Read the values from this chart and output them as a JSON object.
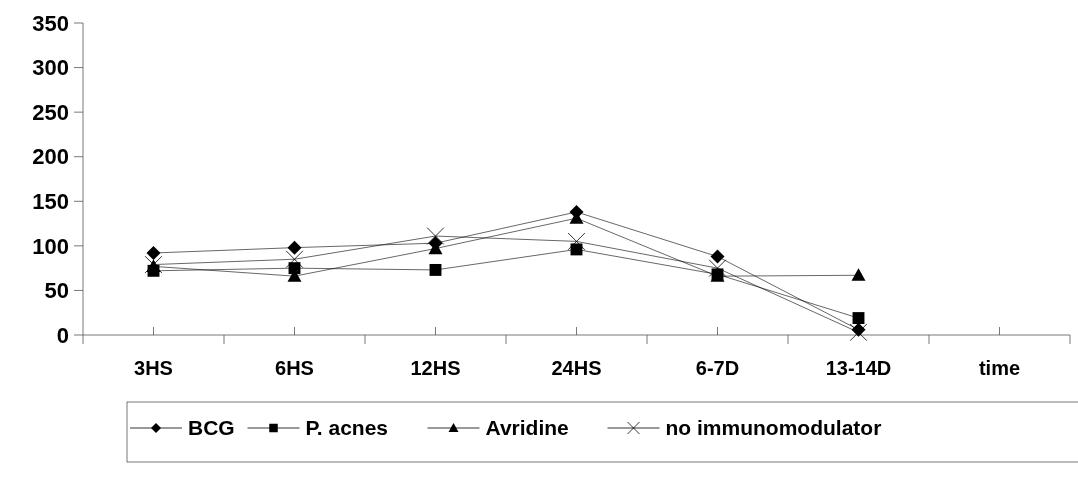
{
  "chart_data": {
    "type": "line",
    "categories": [
      "3HS",
      "6HS",
      "12HS",
      "24HS",
      "6-7D",
      "13-14D",
      "time"
    ],
    "ylim": [
      0,
      350
    ],
    "yticks": [
      0,
      50,
      100,
      150,
      200,
      250,
      300,
      350
    ],
    "grid": false,
    "legend": "bottom",
    "line_style": "solid",
    "series": [
      {
        "name": "BCG",
        "color": "#000000",
        "marker": "diamond",
        "values": [
          92,
          98,
          103,
          138,
          88,
          6,
          null
        ]
      },
      {
        "name": "P. acnes",
        "color": "#000000",
        "marker": "square",
        "values": [
          72,
          75,
          73,
          96,
          68,
          19,
          null
        ]
      },
      {
        "name": "Avridine",
        "color": "#000000",
        "marker": "triangle",
        "values": [
          77,
          66,
          97,
          131,
          66,
          67,
          null
        ]
      },
      {
        "name": "no immunomodulator",
        "color": "#000000",
        "marker": "cross",
        "values": [
          79,
          85,
          111,
          105,
          75,
          3,
          null
        ]
      }
    ]
  }
}
